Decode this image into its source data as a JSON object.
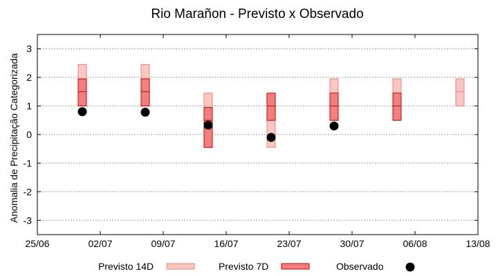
{
  "chart_data": {
    "type": "range-bar",
    "title": "Rio Marañon - Previsto x Observado",
    "xlabel": "",
    "ylabel": "Anomalia de Precipitação Categorizada",
    "ylim": [
      -3.5,
      3.5
    ],
    "yticks": [
      3,
      2,
      1,
      0,
      -1,
      -2,
      -3
    ],
    "xlim": [
      "2020-06-25",
      "2020-08-13"
    ],
    "xticks": [
      {
        "date": "2020-06-25",
        "label": "25/06"
      },
      {
        "date": "2020-07-02",
        "label": "02/07"
      },
      {
        "date": "2020-07-09",
        "label": "09/07"
      },
      {
        "date": "2020-07-16",
        "label": "16/07"
      },
      {
        "date": "2020-07-23",
        "label": "23/07"
      },
      {
        "date": "2020-07-30",
        "label": "30/07"
      },
      {
        "date": "2020-08-06",
        "label": "06/08"
      },
      {
        "date": "2020-08-13",
        "label": "13/08"
      }
    ],
    "grid": true,
    "legend_position": "bottom",
    "series": [
      {
        "name": "Previsto 14D",
        "color": "#f08080",
        "fill": "#f8c8c0",
        "points": [
          {
            "x": "2020-06-30",
            "low": 1.0,
            "mid": 1.5,
            "high": 2.45
          },
          {
            "x": "2020-07-07",
            "low": 1.0,
            "mid": 1.5,
            "high": 2.45
          },
          {
            "x": "2020-07-14",
            "low": -0.45,
            "mid": 0.5,
            "high": 1.45
          },
          {
            "x": "2020-07-21",
            "low": -0.45,
            "mid": 0.5,
            "high": 1.45
          },
          {
            "x": "2020-07-28",
            "low": 0.5,
            "mid": 1.0,
            "high": 1.95
          },
          {
            "x": "2020-08-04",
            "low": 0.5,
            "mid": 1.0,
            "high": 1.95
          },
          {
            "x": "2020-08-11",
            "low": 1.0,
            "mid": 1.5,
            "high": 1.95
          }
        ]
      },
      {
        "name": "Previsto 7D",
        "color": "#cc0000",
        "fill": "#f08080",
        "points": [
          {
            "x": "2020-06-30",
            "low": 1.0,
            "mid": 1.5,
            "high": 1.95
          },
          {
            "x": "2020-07-07",
            "low": 1.0,
            "mid": 1.5,
            "high": 1.95
          },
          {
            "x": "2020-07-14",
            "low": -0.45,
            "mid": 0.5,
            "high": 0.95
          },
          {
            "x": "2020-07-21",
            "low": 0.5,
            "mid": 1.0,
            "high": 1.45
          },
          {
            "x": "2020-07-28",
            "low": 0.5,
            "mid": 1.0,
            "high": 1.45
          },
          {
            "x": "2020-08-04",
            "low": 0.5,
            "mid": 1.0,
            "high": 1.45
          }
        ]
      },
      {
        "name": "Observado",
        "color": "#000000",
        "points": [
          {
            "x": "2020-06-30",
            "y": 0.8
          },
          {
            "x": "2020-07-07",
            "y": 0.78
          },
          {
            "x": "2020-07-14",
            "y": 0.33
          },
          {
            "x": "2020-07-21",
            "y": -0.1
          },
          {
            "x": "2020-07-28",
            "y": 0.3
          }
        ]
      }
    ]
  }
}
